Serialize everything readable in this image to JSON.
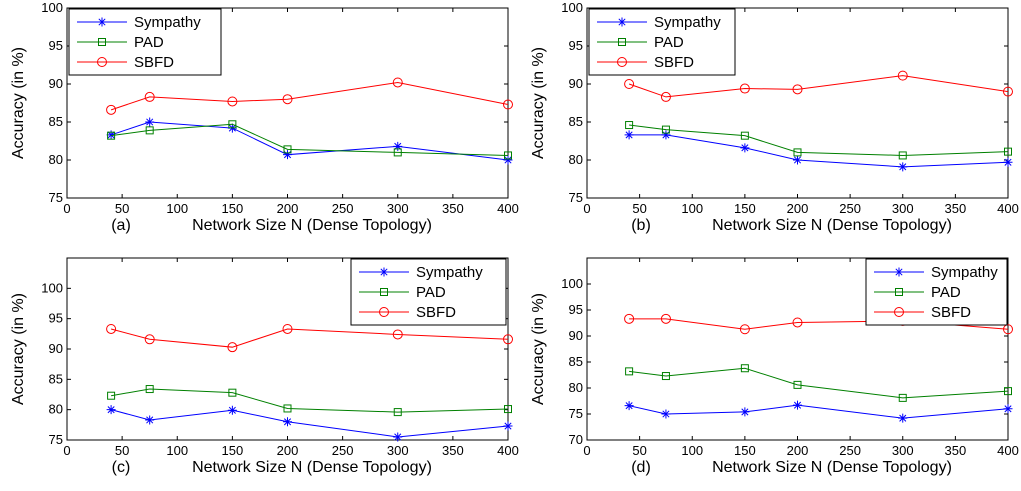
{
  "chart_data": [
    {
      "type": "line",
      "panel_label": "(a)",
      "xlabel": "Network Size N (Dense Topology)",
      "ylabel": "Accuracy (in %)",
      "xlim": [
        0,
        400
      ],
      "ylim": [
        75,
        100
      ],
      "xticks": [
        0,
        50,
        100,
        150,
        200,
        250,
        300,
        350,
        400
      ],
      "yticks": [
        75,
        80,
        85,
        90,
        95,
        100
      ],
      "legend_position": "top-left",
      "x": [
        40,
        75,
        150,
        200,
        300,
        400
      ],
      "series": [
        {
          "name": "Sympathy",
          "color": "#0000ff",
          "marker": "asterisk",
          "values": [
            83.3,
            85.0,
            84.2,
            80.7,
            81.8,
            80.0
          ]
        },
        {
          "name": "PAD",
          "color": "#008000",
          "marker": "square",
          "values": [
            83.2,
            83.9,
            84.7,
            81.4,
            81.0,
            80.6
          ]
        },
        {
          "name": "SBFD",
          "color": "#ff0000",
          "marker": "circle",
          "values": [
            86.6,
            88.3,
            87.7,
            88.0,
            90.2,
            87.3
          ]
        }
      ]
    },
    {
      "type": "line",
      "panel_label": "(b)",
      "xlabel": "Network Size N (Dense Topology)",
      "ylabel": "Accuracy (in %)",
      "xlim": [
        0,
        400
      ],
      "ylim": [
        75,
        100
      ],
      "xticks": [
        0,
        50,
        100,
        150,
        200,
        250,
        300,
        350,
        400
      ],
      "yticks": [
        75,
        80,
        85,
        90,
        95,
        100
      ],
      "legend_position": "top-left",
      "x": [
        40,
        75,
        150,
        200,
        300,
        400
      ],
      "series": [
        {
          "name": "Sympathy",
          "color": "#0000ff",
          "marker": "asterisk",
          "values": [
            83.3,
            83.3,
            81.6,
            80.0,
            79.1,
            79.7
          ]
        },
        {
          "name": "PAD",
          "color": "#008000",
          "marker": "square",
          "values": [
            84.6,
            84.0,
            83.2,
            81.0,
            80.6,
            81.1
          ]
        },
        {
          "name": "SBFD",
          "color": "#ff0000",
          "marker": "circle",
          "values": [
            90.0,
            88.3,
            89.4,
            89.3,
            91.1,
            89.0
          ]
        }
      ]
    },
    {
      "type": "line",
      "panel_label": "(c)",
      "xlabel": "Network Size N (Dense Topology)",
      "ylabel": "Accuracy (in %)",
      "xlim": [
        0,
        400
      ],
      "ylim": [
        75,
        105
      ],
      "xticks": [
        0,
        50,
        100,
        150,
        200,
        250,
        300,
        350,
        400
      ],
      "yticks": [
        75,
        80,
        85,
        90,
        95,
        100
      ],
      "legend_position": "top-right",
      "x": [
        40,
        75,
        150,
        200,
        300,
        400
      ],
      "series": [
        {
          "name": "Sympathy",
          "color": "#0000ff",
          "marker": "asterisk",
          "values": [
            80.0,
            78.3,
            79.9,
            78.0,
            75.5,
            77.3
          ]
        },
        {
          "name": "PAD",
          "color": "#008000",
          "marker": "square",
          "values": [
            82.3,
            83.4,
            82.8,
            80.2,
            79.6,
            80.1
          ]
        },
        {
          "name": "SBFD",
          "color": "#ff0000",
          "marker": "circle",
          "values": [
            93.3,
            91.6,
            90.3,
            93.3,
            92.4,
            91.6
          ]
        }
      ]
    },
    {
      "type": "line",
      "panel_label": "(d)",
      "xlabel": "Network Size N (Dense Topology)",
      "ylabel": "Accuracy (in %)",
      "xlim": [
        0,
        400
      ],
      "ylim": [
        70,
        105
      ],
      "xticks": [
        0,
        50,
        100,
        150,
        200,
        250,
        300,
        350,
        400
      ],
      "yticks": [
        70,
        75,
        80,
        85,
        90,
        95,
        100
      ],
      "legend_position": "top-right",
      "x": [
        40,
        75,
        150,
        200,
        300,
        400
      ],
      "series": [
        {
          "name": "Sympathy",
          "color": "#0000ff",
          "marker": "asterisk",
          "values": [
            76.6,
            75.0,
            75.4,
            76.7,
            74.2,
            76.0
          ]
        },
        {
          "name": "PAD",
          "color": "#008000",
          "marker": "square",
          "values": [
            83.2,
            82.3,
            83.8,
            80.6,
            78.1,
            79.4
          ]
        },
        {
          "name": "SBFD",
          "color": "#ff0000",
          "marker": "circle",
          "values": [
            93.3,
            93.3,
            91.3,
            92.6,
            92.9,
            91.3
          ]
        }
      ]
    }
  ]
}
